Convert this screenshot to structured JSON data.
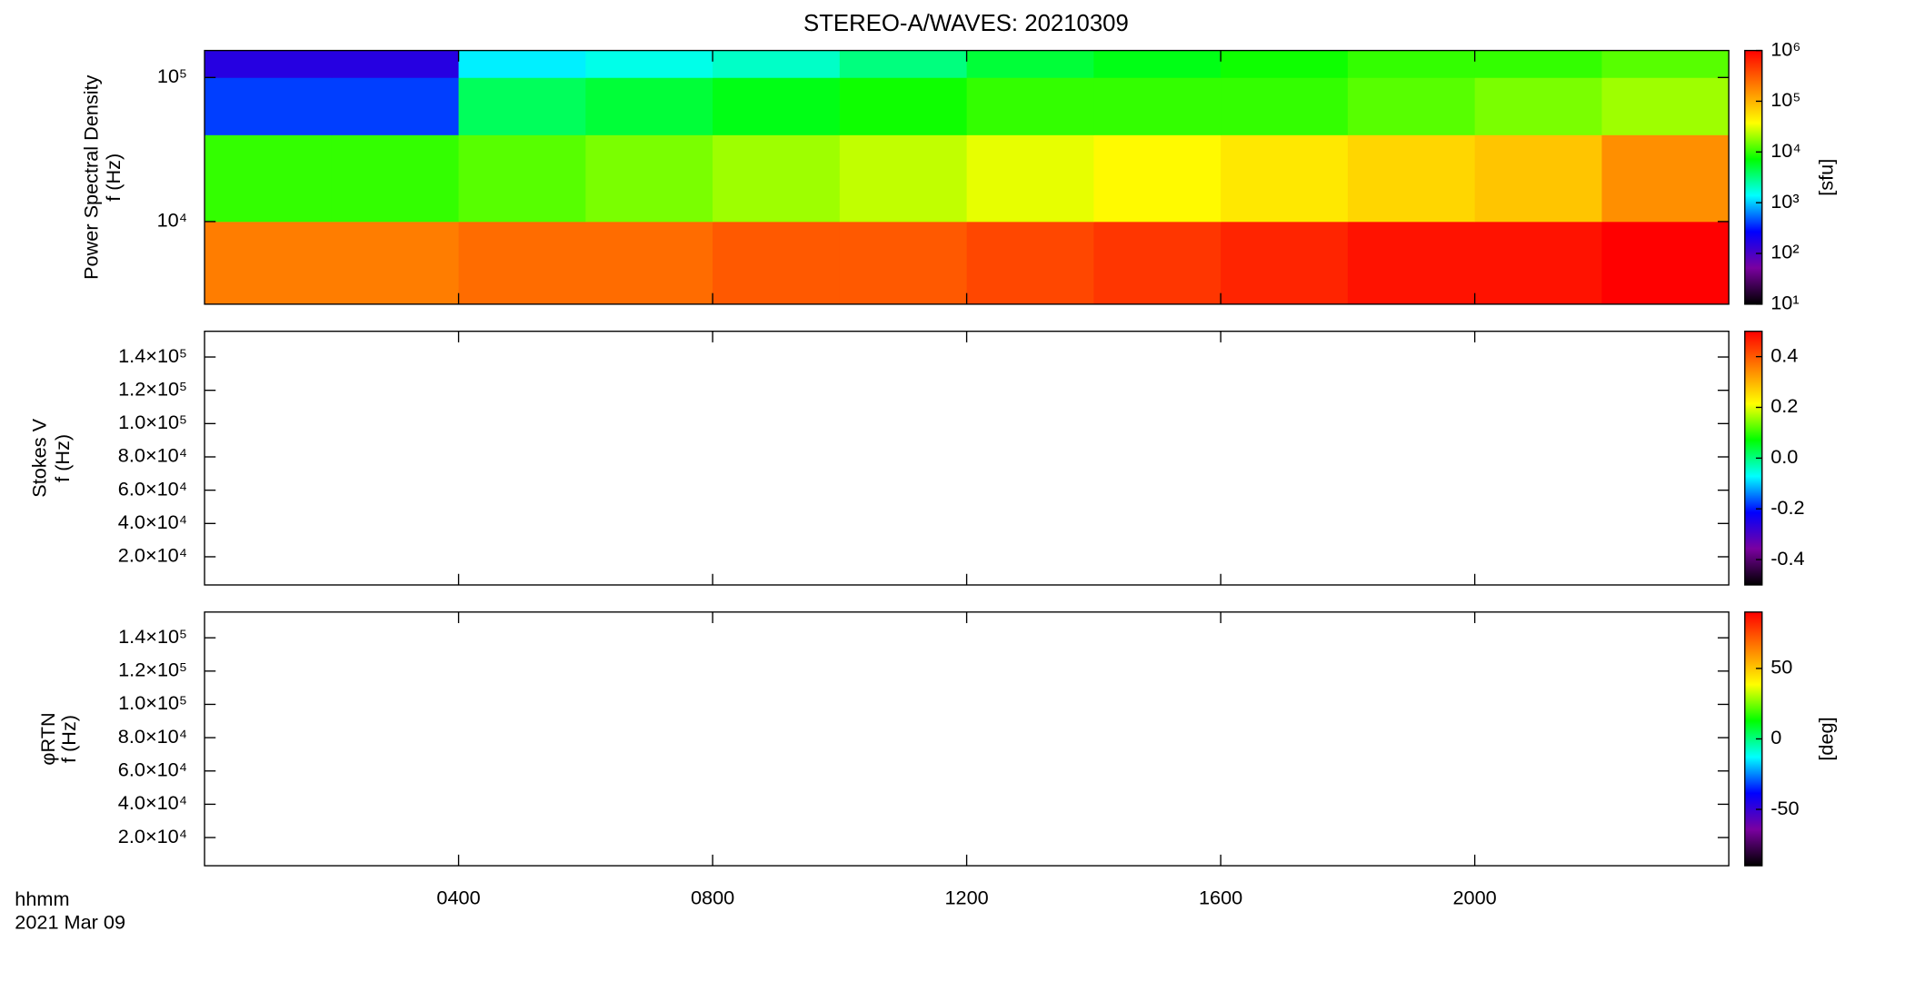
{
  "colormap": [
    "#000000",
    "#7a00a0",
    "#0000ff",
    "#00ffff",
    "#00ff00",
    "#ffff00",
    "#ff8000",
    "#ff0000"
  ],
  "chart_data": [
    {
      "type": "heatmap",
      "title": "STEREO-A/WAVES: 20210309",
      "ylabel": [
        "Power Spectral Density",
        "f (Hz)"
      ],
      "yscale": "log",
      "ylim": [
        2670,
        154000
      ],
      "yticks": [
        {
          "value": 10000,
          "label": "10⁴"
        },
        {
          "value": 100000,
          "label": "10⁵"
        }
      ],
      "xlim": [
        0,
        24
      ],
      "x_bins": [
        0,
        2,
        4,
        6,
        8,
        10,
        12,
        14,
        16,
        18,
        20,
        22,
        24
      ],
      "y_bins": [
        2670,
        10000,
        40000,
        100000,
        154000
      ],
      "z": [
        [
          200000,
          200000,
          250000,
          250000,
          320000,
          320000,
          400000,
          500000,
          630000,
          790000,
          790000,
          1000000
        ],
        [
          10000,
          10000,
          12600,
          15800,
          20000,
          25000,
          32000,
          40000,
          50000,
          63000,
          79000,
          160000
        ],
        [
          400,
          400,
          4000,
          5000,
          6300,
          7900,
          10000,
          10000,
          10000,
          12600,
          15800,
          20000
        ],
        [
          160,
          160,
          1260,
          1600,
          2000,
          3200,
          5000,
          6300,
          7900,
          10000,
          10000,
          12600
        ]
      ],
      "colorbar": {
        "label": "[sfu]",
        "scale": "log",
        "lim": [
          10,
          1000000
        ],
        "ticks": [
          {
            "value": 10,
            "label": "10¹"
          },
          {
            "value": 100,
            "label": "10²"
          },
          {
            "value": 1000,
            "label": "10³"
          },
          {
            "value": 10000,
            "label": "10⁴"
          },
          {
            "value": 100000,
            "label": "10⁵"
          },
          {
            "value": 1000000,
            "label": "10⁶"
          }
        ]
      }
    },
    {
      "type": "heatmap",
      "ylabel": [
        "Stokes V",
        "f (Hz)"
      ],
      "yscale": "linear",
      "ylim": [
        3070,
        155460
      ],
      "yticks": [
        {
          "value": 20000,
          "label": "2.0×10⁴"
        },
        {
          "value": 40000,
          "label": "4.0×10⁴"
        },
        {
          "value": 60000,
          "label": "6.0×10⁴"
        },
        {
          "value": 80000,
          "label": "8.0×10⁴"
        },
        {
          "value": 100000,
          "label": "1.0×10⁵"
        },
        {
          "value": 120000,
          "label": "1.2×10⁵"
        },
        {
          "value": 140000,
          "label": "1.4×10⁵"
        }
      ],
      "xlim": [
        0,
        24
      ],
      "colorbar": {
        "scale": "linear",
        "lim": [
          -0.5,
          0.5
        ],
        "ticks": [
          -0.4,
          -0.2,
          {
            "value": 0,
            "label": "0.0"
          },
          0.2,
          0.4
        ]
      }
    },
    {
      "type": "heatmap",
      "ylabel": [
        "φRTN",
        "f (Hz)"
      ],
      "yscale": "linear",
      "ylim": [
        3070,
        155460
      ],
      "yticks": [
        {
          "value": 20000,
          "label": "2.0×10⁴"
        },
        {
          "value": 40000,
          "label": "4.0×10⁴"
        },
        {
          "value": 60000,
          "label": "6.0×10⁴"
        },
        {
          "value": 80000,
          "label": "8.0×10⁴"
        },
        {
          "value": 100000,
          "label": "1.0×10⁵"
        },
        {
          "value": 120000,
          "label": "1.2×10⁵"
        },
        {
          "value": 140000,
          "label": "1.4×10⁵"
        }
      ],
      "xlim": [
        0,
        24
      ],
      "xticks": [
        {
          "value": 4,
          "label": "0400"
        },
        {
          "value": 8,
          "label": "0800"
        },
        {
          "value": 12,
          "label": "1200"
        },
        {
          "value": 16,
          "label": "1600"
        },
        {
          "value": 20,
          "label": "2000"
        }
      ],
      "time_label": "hhmm",
      "date_label": "2021 Mar 09",
      "colorbar": {
        "label": "[deg]",
        "scale": "linear",
        "lim": [
          -90,
          90
        ],
        "ticks": [
          -50,
          0,
          50
        ]
      }
    }
  ]
}
